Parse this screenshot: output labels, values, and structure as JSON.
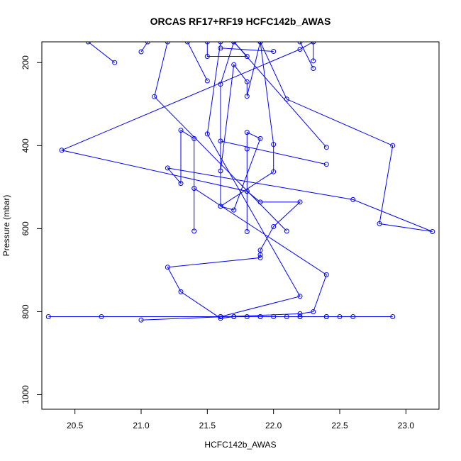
{
  "chart_data": {
    "type": "line",
    "title": "ORCAS RF17+RF19 HCFC142b_AWAS",
    "xlabel": "HCFC142b_AWAS",
    "ylabel": "Pressure (mbar)",
    "xlim": [
      20.25,
      23.25
    ],
    "ylim": [
      1035,
      150
    ],
    "y_inverted": true,
    "x_ticks": [
      "20.5",
      "21.0",
      "21.5",
      "22.0",
      "22.5",
      "23.0"
    ],
    "y_ticks": [
      "200",
      "400",
      "600",
      "800",
      "1000"
    ],
    "grid": false,
    "legend": "none",
    "colors": {
      "series": "#0000ff",
      "axis": "#000000"
    },
    "series": [
      {
        "values": [
          {
            "x": 20.3,
            "y": 812
          },
          {
            "x": 20.7,
            "y": 812
          },
          {
            "x": 21.6,
            "y": 812
          },
          {
            "x": 21.7,
            "y": 812
          },
          {
            "x": 21.8,
            "y": 812
          },
          {
            "x": 21.9,
            "y": 812
          },
          {
            "x": 22.0,
            "y": 812
          },
          {
            "x": 22.1,
            "y": 812
          },
          {
            "x": 22.2,
            "y": 812
          },
          {
            "x": 22.4,
            "y": 812
          },
          {
            "x": 22.5,
            "y": 812
          },
          {
            "x": 22.6,
            "y": 812
          },
          {
            "x": 22.9,
            "y": 812
          },
          {
            "x": 22.4,
            "y": 812
          },
          {
            "x": 22.2,
            "y": 812
          },
          {
            "x": 21.9,
            "y": 812
          },
          {
            "x": 21.7,
            "y": 812
          },
          {
            "x": 21.6,
            "y": 816
          },
          {
            "x": 21.3,
            "y": 752
          },
          {
            "x": 21.2,
            "y": 693
          },
          {
            "x": 21.9,
            "y": 670
          },
          {
            "x": 21.9,
            "y": 663
          },
          {
            "x": 21.9,
            "y": 652
          },
          {
            "x": 22.0,
            "y": 595
          },
          {
            "x": 22.2,
            "y": 536
          },
          {
            "x": 21.9,
            "y": 536
          },
          {
            "x": 21.8,
            "y": 510
          },
          {
            "x": 21.8,
            "y": 408
          },
          {
            "x": 21.8,
            "y": 368
          },
          {
            "x": 21.9,
            "y": 383
          },
          {
            "x": 21.7,
            "y": 555
          },
          {
            "x": 21.6,
            "y": 546
          },
          {
            "x": 22.0,
            "y": 463
          },
          {
            "x": 22.0,
            "y": 397
          },
          {
            "x": 21.9,
            "y": 150
          }
        ]
      },
      {
        "values": [
          {
            "x": 21.0,
            "y": 820
          },
          {
            "x": 22.2,
            "y": 805
          },
          {
            "x": 22.3,
            "y": 800
          },
          {
            "x": 22.4,
            "y": 711
          },
          {
            "x": 21.4,
            "y": 503
          },
          {
            "x": 21.4,
            "y": 606
          },
          {
            "x": 21.4,
            "y": 383
          },
          {
            "x": 21.3,
            "y": 363
          },
          {
            "x": 21.3,
            "y": 491
          },
          {
            "x": 21.2,
            "y": 454
          },
          {
            "x": 22.6,
            "y": 530
          },
          {
            "x": 23.2,
            "y": 607
          },
          {
            "x": 22.8,
            "y": 588
          },
          {
            "x": 22.9,
            "y": 400
          },
          {
            "x": 22.1,
            "y": 288
          },
          {
            "x": 21.9,
            "y": 150
          }
        ]
      },
      {
        "values": [
          {
            "x": 21.6,
            "y": 812
          },
          {
            "x": 22.2,
            "y": 763
          },
          {
            "x": 21.5,
            "y": 372
          },
          {
            "x": 21.6,
            "y": 150
          }
        ]
      },
      {
        "values": [
          {
            "x": 21.8,
            "y": 607
          },
          {
            "x": 21.8,
            "y": 510
          },
          {
            "x": 20.4,
            "y": 411
          },
          {
            "x": 22.2,
            "y": 168
          },
          {
            "x": 22.3,
            "y": 150
          }
        ]
      },
      {
        "values": [
          {
            "x": 22.4,
            "y": 445
          },
          {
            "x": 21.6,
            "y": 389
          },
          {
            "x": 21.6,
            "y": 461
          },
          {
            "x": 21.7,
            "y": 205
          },
          {
            "x": 21.8,
            "y": 246
          },
          {
            "x": 21.8,
            "y": 281
          },
          {
            "x": 21.9,
            "y": 150
          }
        ]
      },
      {
        "values": [
          {
            "x": 21.6,
            "y": 546
          },
          {
            "x": 21.6,
            "y": 252
          },
          {
            "x": 21.7,
            "y": 150
          }
        ]
      },
      {
        "values": [
          {
            "x": 22.1,
            "y": 606
          },
          {
            "x": 21.1,
            "y": 282
          },
          {
            "x": 21.2,
            "y": 150
          }
        ]
      },
      {
        "values": [
          {
            "x": 22.4,
            "y": 404
          },
          {
            "x": 21.7,
            "y": 150
          }
        ]
      },
      {
        "values": [
          {
            "x": 21.7,
            "y": 150
          },
          {
            "x": 21.8,
            "y": 185
          },
          {
            "x": 21.5,
            "y": 185
          },
          {
            "x": 21.5,
            "y": 150
          }
        ]
      },
      {
        "values": [
          {
            "x": 22.0,
            "y": 173
          },
          {
            "x": 21.6,
            "y": 165
          }
        ]
      },
      {
        "values": [
          {
            "x": 21.5,
            "y": 244
          },
          {
            "x": 21.35,
            "y": 150
          }
        ]
      },
      {
        "values": [
          {
            "x": 21.0,
            "y": 174
          },
          {
            "x": 21.05,
            "y": 150
          }
        ]
      },
      {
        "values": [
          {
            "x": 20.8,
            "y": 200
          },
          {
            "x": 20.6,
            "y": 150
          }
        ]
      },
      {
        "values": [
          {
            "x": 22.3,
            "y": 196
          },
          {
            "x": 22.3,
            "y": 150
          }
        ]
      },
      {
        "values": [
          {
            "x": 22.3,
            "y": 214
          },
          {
            "x": 22.2,
            "y": 150
          }
        ]
      }
    ]
  }
}
